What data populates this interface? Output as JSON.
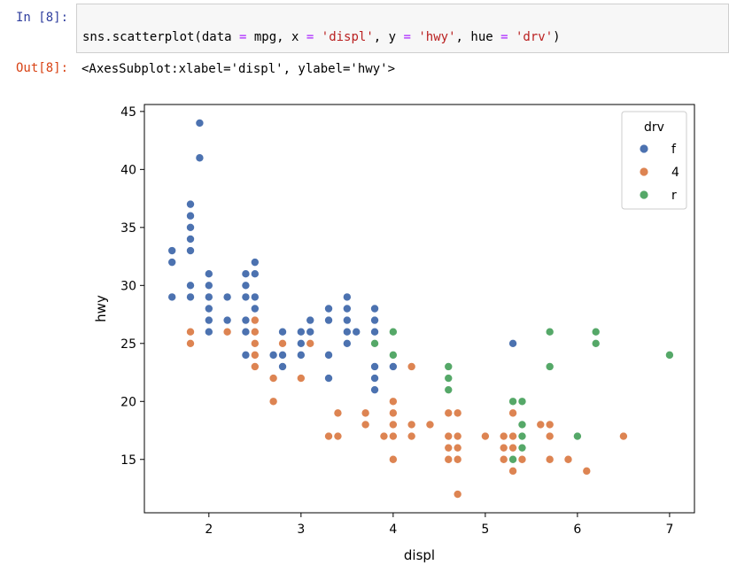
{
  "cell": {
    "in_prompt": "In [8]:",
    "out_prompt": "Out[8]:",
    "code": {
      "fn": "sns.scatterplot(data ",
      "eq1": "=",
      "arg1": " mpg, x ",
      "eq2": "=",
      "s1": "'displ'",
      "arg2": ", y ",
      "eq3": "=",
      "s2": "'hwy'",
      "arg3": ", hue ",
      "eq4": "=",
      "s3": "'drv'",
      "close": ")"
    },
    "output": "<AxesSubplot:xlabel='displ', ylabel='hwy'>"
  },
  "chart_data": {
    "type": "scatter",
    "xlabel": "displ",
    "ylabel": "hwy",
    "xlim": [
      1.3,
      7.27
    ],
    "ylim": [
      10.4,
      45.6
    ],
    "xticks": [
      2,
      3,
      4,
      5,
      6,
      7
    ],
    "yticks": [
      15,
      20,
      25,
      30,
      35,
      40,
      45
    ],
    "grid": false,
    "legend": {
      "title": "drv",
      "placement": "top-right"
    },
    "series": [
      {
        "name": "f",
        "color": "#4c72b0",
        "points": [
          [
            1.6,
            33
          ],
          [
            1.6,
            32
          ],
          [
            1.6,
            29
          ],
          [
            1.8,
            37
          ],
          [
            1.8,
            36
          ],
          [
            1.8,
            35
          ],
          [
            1.8,
            34
          ],
          [
            1.8,
            33
          ],
          [
            1.8,
            30
          ],
          [
            1.8,
            29
          ],
          [
            1.9,
            44
          ],
          [
            1.9,
            41
          ],
          [
            2.0,
            31
          ],
          [
            2.0,
            30
          ],
          [
            2.0,
            29
          ],
          [
            2.0,
            28
          ],
          [
            2.0,
            27
          ],
          [
            2.0,
            26
          ],
          [
            2.2,
            29
          ],
          [
            2.2,
            27
          ],
          [
            2.4,
            31
          ],
          [
            2.4,
            30
          ],
          [
            2.4,
            29
          ],
          [
            2.4,
            27
          ],
          [
            2.4,
            26
          ],
          [
            2.4,
            24
          ],
          [
            2.5,
            32
          ],
          [
            2.5,
            31
          ],
          [
            2.5,
            29
          ],
          [
            2.5,
            28
          ],
          [
            2.5,
            26
          ],
          [
            2.5,
            24
          ],
          [
            2.7,
            24
          ],
          [
            2.8,
            26
          ],
          [
            2.8,
            24
          ],
          [
            2.8,
            23
          ],
          [
            3.0,
            26
          ],
          [
            3.0,
            25
          ],
          [
            3.0,
            24
          ],
          [
            3.1,
            27
          ],
          [
            3.1,
            26
          ],
          [
            3.3,
            28
          ],
          [
            3.3,
            27
          ],
          [
            3.3,
            24
          ],
          [
            3.3,
            22
          ],
          [
            3.5,
            29
          ],
          [
            3.5,
            28
          ],
          [
            3.5,
            27
          ],
          [
            3.5,
            26
          ],
          [
            3.5,
            25
          ],
          [
            3.6,
            26
          ],
          [
            3.8,
            28
          ],
          [
            3.8,
            27
          ],
          [
            3.8,
            26
          ],
          [
            3.8,
            23
          ],
          [
            3.8,
            22
          ],
          [
            3.8,
            21
          ],
          [
            4.0,
            23
          ],
          [
            5.3,
            25
          ]
        ]
      },
      {
        "name": "4",
        "color": "#dd8452",
        "points": [
          [
            1.8,
            26
          ],
          [
            1.8,
            25
          ],
          [
            2.2,
            26
          ],
          [
            2.5,
            27
          ],
          [
            2.5,
            26
          ],
          [
            2.5,
            25
          ],
          [
            2.5,
            24
          ],
          [
            2.5,
            23
          ],
          [
            2.7,
            22
          ],
          [
            2.7,
            20
          ],
          [
            2.8,
            25
          ],
          [
            3.0,
            22
          ],
          [
            3.1,
            25
          ],
          [
            3.3,
            17
          ],
          [
            3.4,
            19
          ],
          [
            3.4,
            17
          ],
          [
            3.7,
            19
          ],
          [
            3.7,
            18
          ],
          [
            3.9,
            17
          ],
          [
            4.0,
            20
          ],
          [
            4.0,
            19
          ],
          [
            4.0,
            18
          ],
          [
            4.0,
            17
          ],
          [
            4.0,
            15
          ],
          [
            4.2,
            23
          ],
          [
            4.2,
            18
          ],
          [
            4.2,
            17
          ],
          [
            4.4,
            18
          ],
          [
            4.6,
            19
          ],
          [
            4.6,
            17
          ],
          [
            4.6,
            16
          ],
          [
            4.6,
            15
          ],
          [
            4.7,
            19
          ],
          [
            4.7,
            17
          ],
          [
            4.7,
            16
          ],
          [
            4.7,
            15
          ],
          [
            4.7,
            12
          ],
          [
            5.0,
            17
          ],
          [
            5.2,
            17
          ],
          [
            5.2,
            16
          ],
          [
            5.2,
            15
          ],
          [
            5.3,
            19
          ],
          [
            5.3,
            17
          ],
          [
            5.3,
            16
          ],
          [
            5.3,
            14
          ],
          [
            5.4,
            15
          ],
          [
            5.6,
            18
          ],
          [
            5.7,
            18
          ],
          [
            5.7,
            17
          ],
          [
            5.7,
            15
          ],
          [
            5.9,
            15
          ],
          [
            6.1,
            14
          ],
          [
            6.5,
            17
          ]
        ]
      },
      {
        "name": "r",
        "color": "#55a868",
        "points": [
          [
            3.8,
            25
          ],
          [
            4.0,
            26
          ],
          [
            4.0,
            24
          ],
          [
            4.6,
            23
          ],
          [
            4.6,
            22
          ],
          [
            4.6,
            21
          ],
          [
            5.3,
            20
          ],
          [
            5.3,
            15
          ],
          [
            5.4,
            20
          ],
          [
            5.4,
            18
          ],
          [
            5.4,
            17
          ],
          [
            5.4,
            16
          ],
          [
            5.7,
            26
          ],
          [
            5.7,
            23
          ],
          [
            6.0,
            17
          ],
          [
            6.2,
            26
          ],
          [
            6.2,
            25
          ],
          [
            7.0,
            24
          ]
        ]
      }
    ]
  }
}
